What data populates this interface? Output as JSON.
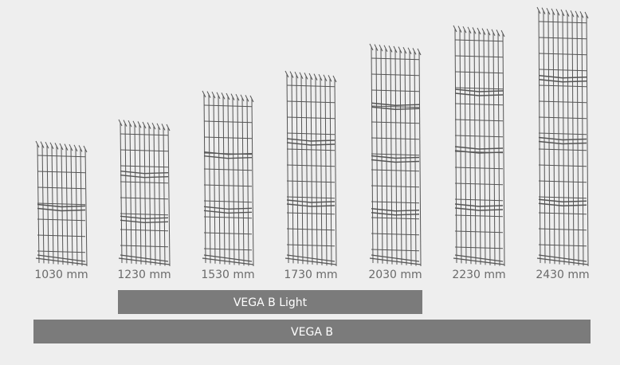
{
  "panels": [
    {
      "label": "1030 mm"
    },
    {
      "label": "1230 mm"
    },
    {
      "label": "1530 mm"
    },
    {
      "label": "1730 mm"
    },
    {
      "label": "2030 mm"
    },
    {
      "label": "2230 mm"
    },
    {
      "label": "2430 mm"
    }
  ],
  "ranges": [
    {
      "label": "VEGA B Light"
    },
    {
      "label": "VEGA B"
    }
  ]
}
